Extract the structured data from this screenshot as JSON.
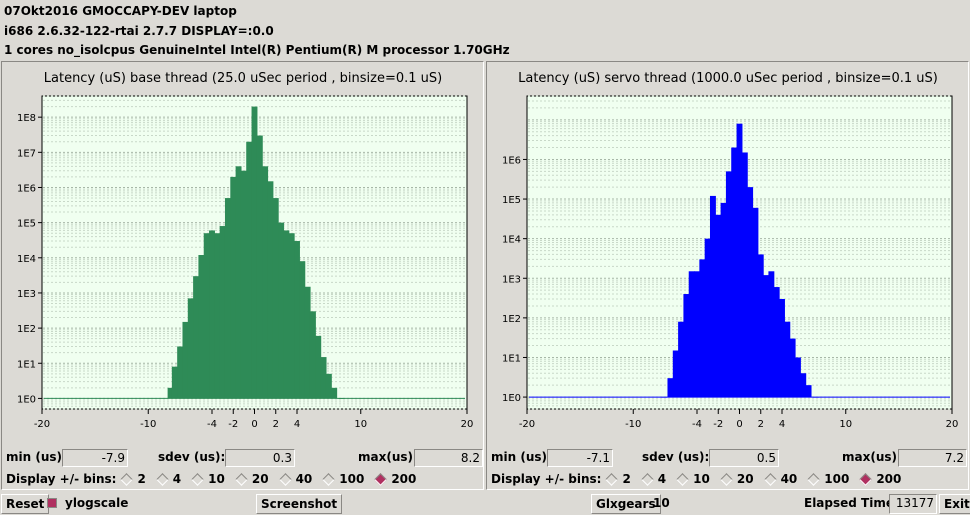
{
  "header": {
    "title": "07Okt2016 GMOCCAPY-DEV laptop",
    "kernel": "i686  2.6.32-122-rtai  2.7.7  DISPLAY=:0.0",
    "cpu": "1 cores  no_isolcpus   GenuineIntel  Intel(R) Pentium(R) M processor 1.70GHz"
  },
  "base": {
    "title": "Latency (uS) base thread (25.0 uSec period , binsize=0.1 uS)",
    "min_label": "min (us)",
    "min": "-7.9",
    "sdev_label": "sdev (us):",
    "sdev": "0.3",
    "max_label": "max(us)",
    "max": "8.2",
    "display_label": "Display +/- bins:",
    "bins": [
      "2",
      "4",
      "10",
      "20",
      "40",
      "100",
      "200"
    ],
    "selected_bins": "200",
    "color": "#2e8b57"
  },
  "servo": {
    "title": "Latency (uS) servo thread (1000.0 uSec period , binsize=0.1 uS)",
    "min_label": "min (us)",
    "min": "-7.1",
    "sdev_label": "sdev (us):",
    "sdev": "0.5",
    "max_label": "max(us)",
    "max": "7.2",
    "display_label": "Display +/- bins:",
    "bins": [
      "2",
      "4",
      "10",
      "20",
      "40",
      "100",
      "200"
    ],
    "selected_bins": "200",
    "color": "#0000ff"
  },
  "footer": {
    "reset": "Reset",
    "ylogscale": "ylogscale",
    "screenshot": "Screenshot",
    "glxgears": "Glxgears",
    "glxgears_count": "10",
    "elapsed_label": "Elapsed Time:",
    "elapsed": "13177",
    "exit": "Exit"
  },
  "chart_data": [
    {
      "type": "bar",
      "title": "Latency (uS) base thread (25.0 uSec period , binsize=0.1 uS)",
      "xlabel": "",
      "ylabel": "",
      "xlim": [
        -20,
        20
      ],
      "xticks": [
        "-20",
        "-10",
        "-4",
        "-2",
        "0",
        "2",
        "4",
        "10",
        "20"
      ],
      "yscale": "log",
      "ylim": [
        0.5,
        400000000
      ],
      "yticks": [
        "1E0",
        "1E1",
        "1E2",
        "1E3",
        "1E4",
        "1E5",
        "1E6",
        "1E7",
        "1E8"
      ],
      "x": [
        -7.9,
        -7.5,
        -7,
        -6.5,
        -6,
        -5.5,
        -5,
        -4.5,
        -4,
        -3.5,
        -3,
        -2.5,
        -2,
        -1.5,
        -1,
        -0.5,
        0,
        0.5,
        1,
        1.5,
        2,
        2.5,
        3,
        3.5,
        4,
        4.5,
        5,
        5.5,
        6,
        6.5,
        7,
        7.5,
        8.2
      ],
      "values": [
        2,
        8,
        30,
        150,
        700,
        3000,
        12000,
        50000,
        60000,
        50000,
        80000,
        500000,
        2000000,
        4000000,
        3000000,
        20000000,
        200000000,
        30000000,
        4000000,
        1500000,
        500000,
        100000,
        60000,
        50000,
        30000,
        8000,
        1500,
        300,
        60,
        15,
        5,
        2,
        1
      ],
      "grid": true
    },
    {
      "type": "bar",
      "title": "Latency (uS) servo thread (1000.0 uSec period , binsize=0.1 uS)",
      "xlabel": "",
      "ylabel": "",
      "xlim": [
        -20,
        20
      ],
      "xticks": [
        "-20",
        "-10",
        "-4",
        "-2",
        "0",
        "2",
        "4",
        "10",
        "20"
      ],
      "yscale": "log",
      "ylim": [
        0.5,
        40000000
      ],
      "yticks": [
        "1E0",
        "1E1",
        "1E2",
        "1E3",
        "1E4",
        "1E5",
        "1E6"
      ],
      "x": [
        -7.1,
        -6.5,
        -6,
        -5.5,
        -5,
        -4.5,
        -4,
        -3.5,
        -3,
        -2.5,
        -2,
        -1.5,
        -1,
        -0.5,
        0,
        0.5,
        1,
        1.5,
        2,
        2.5,
        3,
        3.5,
        4,
        4.5,
        5,
        5.5,
        6,
        6.5,
        7.2
      ],
      "values": [
        1,
        3,
        15,
        80,
        400,
        1500,
        1500,
        3000,
        10000,
        120000,
        40000,
        80000,
        500000,
        2000000,
        8000000,
        1500000,
        200000,
        60000,
        4000,
        1200,
        1500,
        600,
        300,
        80,
        30,
        10,
        4,
        2,
        1
      ],
      "grid": true
    }
  ]
}
